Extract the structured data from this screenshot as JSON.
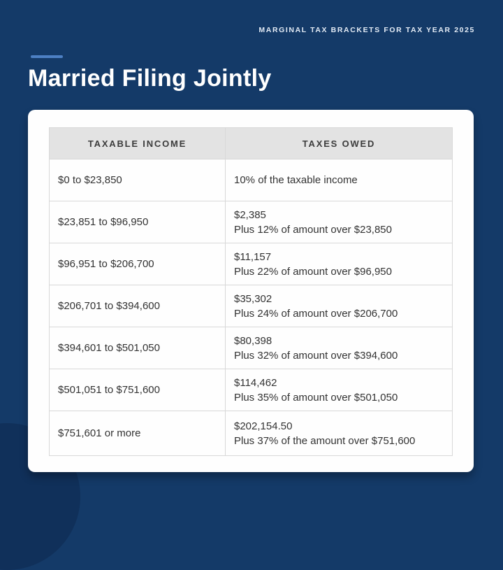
{
  "page": {
    "tagline": "MARGINAL TAX BRACKETS FOR TAX YEAR 2025",
    "title": "Married Filing Jointly"
  },
  "colors": {
    "background_navy": "#143a68",
    "accent_dash_blue": "#4d80c4",
    "card_white": "#fefefe",
    "header_gray": "#e3e3e3",
    "table_border": "#d8d8d8",
    "cell_text": "#333333",
    "title_text": "#ffffff"
  },
  "chart_data": {
    "type": "table",
    "title": "Married Filing Jointly",
    "subtitle": "MARGINAL TAX BRACKETS FOR TAX YEAR 2025",
    "columns": [
      "TAXABLE INCOME",
      "TAXES OWED"
    ],
    "rows": [
      {
        "taxable_income": "$0 to $23,850",
        "taxes_owed_base": "",
        "taxes_owed_detail": "10% of the taxable income"
      },
      {
        "taxable_income": "$23,851 to $96,950",
        "taxes_owed_base": "$2,385",
        "taxes_owed_detail": "Plus 12% of amount over $23,850"
      },
      {
        "taxable_income": "$96,951 to $206,700",
        "taxes_owed_base": "$11,157",
        "taxes_owed_detail": "Plus 22% of amount over $96,950"
      },
      {
        "taxable_income": "$206,701 to $394,600",
        "taxes_owed_base": "$35,302",
        "taxes_owed_detail": "Plus 24% of amount over $206,700"
      },
      {
        "taxable_income": "$394,601 to $501,050",
        "taxes_owed_base": "$80,398",
        "taxes_owed_detail": "Plus 32% of amount over $394,600"
      },
      {
        "taxable_income": "$501,051 to $751,600",
        "taxes_owed_base": "$114,462",
        "taxes_owed_detail": "Plus 35% of amount over $501,050"
      },
      {
        "taxable_income": "$751,601 or more",
        "taxes_owed_base": "$202,154.50",
        "taxes_owed_detail": "Plus 37% of the amount over $751,600"
      }
    ]
  }
}
